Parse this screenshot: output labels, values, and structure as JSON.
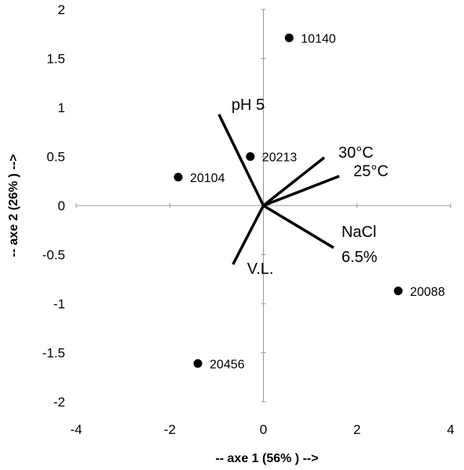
{
  "chart_data": {
    "type": "scatter",
    "title": "",
    "xlabel": "-- axe 1 (56% ) -->",
    "ylabel": "-- axe 2 (26% ) -->",
    "xlim": [
      -4,
      4
    ],
    "ylim": [
      -2,
      2
    ],
    "xticks": [
      -4,
      -2,
      0,
      2,
      4
    ],
    "yticks": [
      -2,
      -1.5,
      -1,
      -0.5,
      0,
      0.5,
      1,
      1.5,
      2
    ],
    "xtick_labels": [
      "-4",
      "-2",
      "0",
      "2",
      "4"
    ],
    "ytick_labels": [
      "-2",
      "-1.5",
      "-1",
      "-0.5",
      "0",
      "0.5",
      "1",
      "1.5",
      "2"
    ],
    "grid": false,
    "points": [
      {
        "label": "10140",
        "x": 0.55,
        "y": 1.71
      },
      {
        "label": "20213",
        "x": -0.28,
        "y": 0.5
      },
      {
        "label": "20104",
        "x": -1.82,
        "y": 0.29
      },
      {
        "label": "20088",
        "x": 2.88,
        "y": -0.87
      },
      {
        "label": "20456",
        "x": -1.4,
        "y": -1.61
      }
    ],
    "vectors": [
      {
        "label": "pH 5",
        "x": -0.95,
        "y": 0.93
      },
      {
        "label": "30°C",
        "x": 1.3,
        "y": 0.49
      },
      {
        "label": "25°C",
        "x": 1.62,
        "y": 0.3
      },
      {
        "label_lines": [
          "NaCl",
          "6.5%"
        ],
        "x": 1.5,
        "y": -0.43
      },
      {
        "label": "V.L.",
        "x": -0.65,
        "y": -0.6
      }
    ]
  }
}
